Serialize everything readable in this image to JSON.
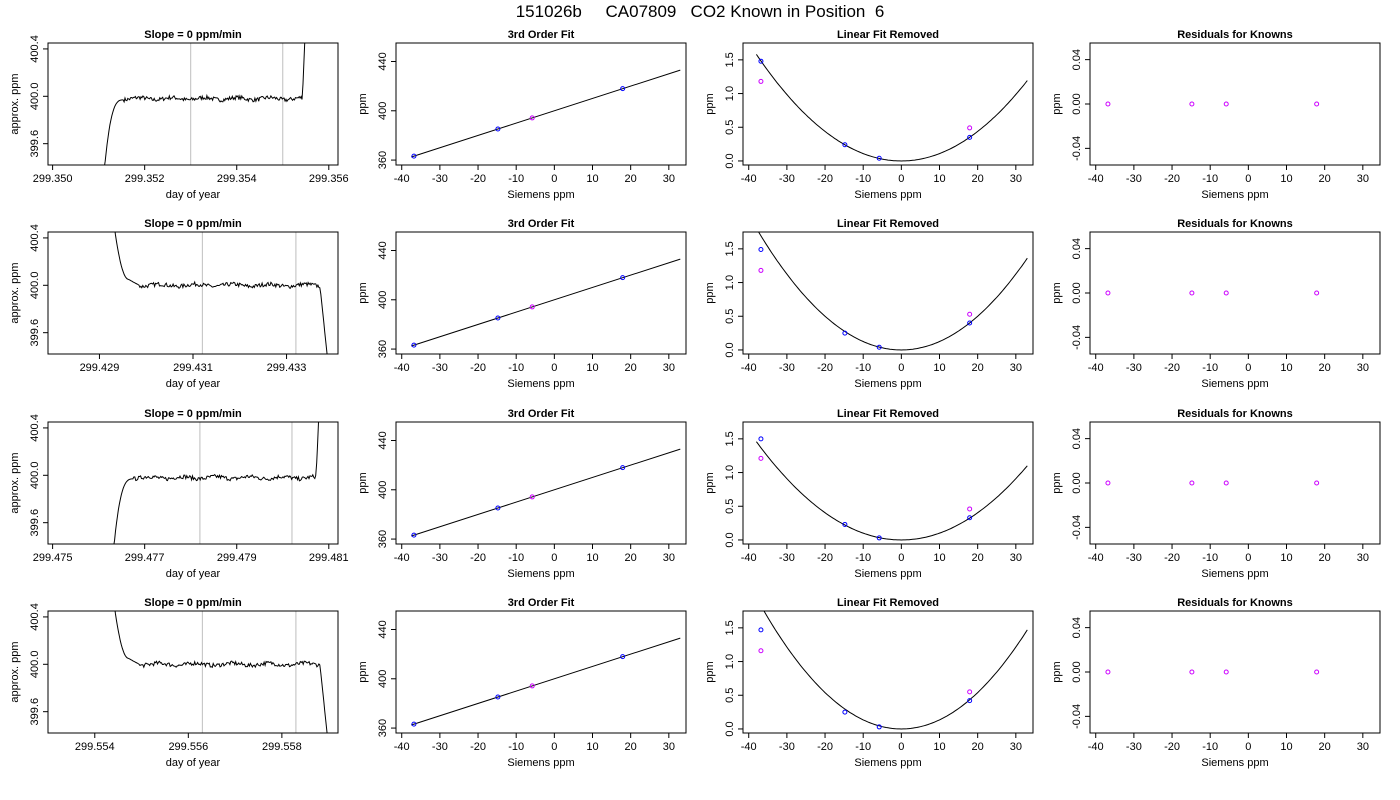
{
  "page": {
    "title": "151026b     CA07809   CO2 Known in Position  6"
  },
  "chart_data": [
    {
      "type": "line",
      "row": 1,
      "col": 1,
      "title": "Slope =  0  ppm/min",
      "xlabel": "day of year",
      "ylabel": "approx. ppm",
      "xlim": [
        299.3499,
        299.3562
      ],
      "ylim": [
        399.42,
        400.45
      ],
      "xticks": [
        {
          "v": 299.35,
          "label": "299.350"
        },
        {
          "v": 299.352,
          "label": "299.352"
        },
        {
          "v": 299.354,
          "label": "299.354"
        },
        {
          "v": 299.356,
          "label": "299.356"
        }
      ],
      "yticks": [
        {
          "v": 399.6,
          "label": "399.6"
        },
        {
          "v": 400.0,
          "label": "400.0"
        },
        {
          "v": 400.4,
          "label": "400.4"
        }
      ],
      "vlines": [
        299.353,
        299.355
      ],
      "trace": "rise",
      "trace_start": 299.351,
      "trace_end": 299.3555
    },
    {
      "type": "scatter",
      "row": 1,
      "col": 2,
      "title": "3rd Order Fit",
      "xlabel": "Siemens ppm",
      "ylabel": "ppm",
      "xlim": [
        -41.5,
        34.5
      ],
      "ylim": [
        356,
        455
      ],
      "xticks": [
        -40,
        -30,
        -20,
        -10,
        0,
        10,
        20,
        30
      ],
      "yticks": [
        360,
        400,
        440
      ],
      "points": [
        {
          "x": -36.8,
          "y": 363.2
        },
        {
          "x": -14.8,
          "y": 385.2
        },
        {
          "x": 17.9,
          "y": 418.0
        }
      ],
      "points_known": [
        {
          "x": -5.8,
          "y": 394.2
        }
      ],
      "fit_line": [
        [
          -37.5,
          362.5
        ],
        [
          33.0,
          433.0
        ]
      ]
    },
    {
      "type": "scatter",
      "row": 1,
      "col": 3,
      "title": "Linear Fit Removed",
      "xlabel": "Siemens ppm",
      "ylabel": "ppm",
      "xlim": [
        -41.5,
        34.5
      ],
      "ylim": [
        -0.06,
        1.75
      ],
      "xticks": [
        -40,
        -30,
        -20,
        -10,
        0,
        10,
        20,
        30
      ],
      "yticks": [
        {
          "v": 0,
          "label": "0.0"
        },
        {
          "v": 0.5,
          "label": "0.5"
        },
        {
          "v": 1.0,
          "label": "1.0"
        },
        {
          "v": 1.5,
          "label": "1.5"
        }
      ],
      "points": [
        {
          "x": -36.8,
          "y": 1.48
        },
        {
          "x": -14.8,
          "y": 0.24
        },
        {
          "x": -5.8,
          "y": 0.04
        },
        {
          "x": 17.9,
          "y": 0.35
        }
      ],
      "points_known": [
        {
          "x": -36.8,
          "y": 1.18
        },
        {
          "x": 17.9,
          "y": 0.49
        }
      ],
      "curve_coef": 0.001095
    },
    {
      "type": "scatter",
      "row": 1,
      "col": 4,
      "title": "Residuals for Knowns",
      "xlabel": "Siemens ppm",
      "ylabel": "ppm",
      "xlim": [
        -41.5,
        34.5
      ],
      "ylim": [
        -0.055,
        0.055
      ],
      "xticks": [
        -40,
        -30,
        -20,
        -10,
        0,
        10,
        20,
        30
      ],
      "yticks": [
        {
          "v": -0.04,
          "label": "-0.04"
        },
        {
          "v": 0,
          "label": "0.00"
        },
        {
          "v": 0.04,
          "label": "0.04"
        }
      ],
      "points_known": [
        {
          "x": -36.8,
          "y": 0
        },
        {
          "x": -14.8,
          "y": 0
        },
        {
          "x": -5.8,
          "y": 0
        },
        {
          "x": 17.9,
          "y": 0
        }
      ]
    },
    {
      "type": "line",
      "row": 2,
      "col": 1,
      "title": "Slope =  0  ppm/min",
      "xlabel": "day of year",
      "ylabel": "approx. ppm",
      "xlim": [
        299.4279,
        299.4341
      ],
      "ylim": [
        399.42,
        400.45
      ],
      "xticks": [
        {
          "v": 299.429,
          "label": "299.429"
        },
        {
          "v": 299.431,
          "label": "299.431"
        },
        {
          "v": 299.433,
          "label": "299.433"
        }
      ],
      "yticks": [
        {
          "v": 399.6,
          "label": "399.6"
        },
        {
          "v": 400.0,
          "label": "400.0"
        },
        {
          "v": 400.4,
          "label": "400.4"
        }
      ],
      "vlines": [
        299.4312,
        299.4332
      ],
      "trace": "fall",
      "trace_start": 299.4293,
      "trace_end": 299.4339
    },
    {
      "type": "scatter",
      "row": 2,
      "col": 2,
      "title": "3rd Order Fit",
      "xlabel": "Siemens ppm",
      "ylabel": "ppm",
      "xlim": [
        -41.5,
        34.5
      ],
      "ylim": [
        356,
        455
      ],
      "xticks": [
        -40,
        -30,
        -20,
        -10,
        0,
        10,
        20,
        30
      ],
      "yticks": [
        360,
        400,
        440
      ],
      "points": [
        {
          "x": -36.8,
          "y": 363.2
        },
        {
          "x": -14.8,
          "y": 385.2
        },
        {
          "x": 17.9,
          "y": 418.0
        }
      ],
      "points_known": [
        {
          "x": -5.8,
          "y": 394.2
        }
      ],
      "fit_line": [
        [
          -37.5,
          362.5
        ],
        [
          33.0,
          433.0
        ]
      ]
    },
    {
      "type": "scatter",
      "row": 2,
      "col": 3,
      "title": "Linear Fit Removed",
      "xlabel": "Siemens ppm",
      "ylabel": "ppm",
      "xlim": [
        -41.5,
        34.5
      ],
      "ylim": [
        -0.06,
        1.75
      ],
      "xticks": [
        -40,
        -30,
        -20,
        -10,
        0,
        10,
        20,
        30
      ],
      "yticks": [
        {
          "v": 0,
          "label": "0.0"
        },
        {
          "v": 0.5,
          "label": "0.5"
        },
        {
          "v": 1.0,
          "label": "1.0"
        },
        {
          "v": 1.5,
          "label": "1.5"
        }
      ],
      "points": [
        {
          "x": -36.8,
          "y": 1.49
        },
        {
          "x": -14.8,
          "y": 0.25
        },
        {
          "x": -5.8,
          "y": 0.04
        },
        {
          "x": 17.9,
          "y": 0.4
        }
      ],
      "points_known": [
        {
          "x": -36.8,
          "y": 1.18
        },
        {
          "x": 17.9,
          "y": 0.53
        }
      ],
      "curve_coef": 0.00125
    },
    {
      "type": "scatter",
      "row": 2,
      "col": 4,
      "title": "Residuals for Knowns",
      "xlabel": "Siemens ppm",
      "ylabel": "ppm",
      "xlim": [
        -41.5,
        34.5
      ],
      "ylim": [
        -0.055,
        0.055
      ],
      "xticks": [
        -40,
        -30,
        -20,
        -10,
        0,
        10,
        20,
        30
      ],
      "yticks": [
        {
          "v": -0.04,
          "label": "-0.04"
        },
        {
          "v": 0,
          "label": "0.00"
        },
        {
          "v": 0.04,
          "label": "0.04"
        }
      ],
      "points_known": [
        {
          "x": -36.8,
          "y": 0
        },
        {
          "x": -14.8,
          "y": 0
        },
        {
          "x": -5.8,
          "y": 0
        },
        {
          "x": 17.9,
          "y": 0
        }
      ]
    },
    {
      "type": "line",
      "row": 3,
      "col": 1,
      "title": "Slope =  0  ppm/min",
      "xlabel": "day of year",
      "ylabel": "approx. ppm",
      "xlim": [
        299.4749,
        299.4812
      ],
      "ylim": [
        399.42,
        400.45
      ],
      "xticks": [
        {
          "v": 299.475,
          "label": "299.475"
        },
        {
          "v": 299.477,
          "label": "299.477"
        },
        {
          "v": 299.479,
          "label": "299.479"
        },
        {
          "v": 299.481,
          "label": "299.481"
        }
      ],
      "yticks": [
        {
          "v": 399.6,
          "label": "399.6"
        },
        {
          "v": 400.0,
          "label": "400.0"
        },
        {
          "v": 400.4,
          "label": "400.4"
        }
      ],
      "vlines": [
        299.4782,
        299.4802
      ],
      "trace": "rise",
      "trace_start": 299.4762,
      "trace_end": 299.4808
    },
    {
      "type": "scatter",
      "row": 3,
      "col": 2,
      "title": "3rd Order Fit",
      "xlabel": "Siemens ppm",
      "ylabel": "ppm",
      "xlim": [
        -41.5,
        34.5
      ],
      "ylim": [
        356,
        455
      ],
      "xticks": [
        -40,
        -30,
        -20,
        -10,
        0,
        10,
        20,
        30
      ],
      "yticks": [
        360,
        400,
        440
      ],
      "points": [
        {
          "x": -36.8,
          "y": 363.2
        },
        {
          "x": -14.8,
          "y": 385.2
        },
        {
          "x": 17.9,
          "y": 418.0
        }
      ],
      "points_known": [
        {
          "x": -5.8,
          "y": 394.2
        }
      ],
      "fit_line": [
        [
          -37.5,
          362.5
        ],
        [
          33.0,
          433.0
        ]
      ]
    },
    {
      "type": "scatter",
      "row": 3,
      "col": 3,
      "title": "Linear Fit Removed",
      "xlabel": "Siemens ppm",
      "ylabel": "ppm",
      "xlim": [
        -41.5,
        34.5
      ],
      "ylim": [
        -0.06,
        1.75
      ],
      "xticks": [
        -40,
        -30,
        -20,
        -10,
        0,
        10,
        20,
        30
      ],
      "yticks": [
        {
          "v": 0,
          "label": "0.0"
        },
        {
          "v": 0.5,
          "label": "0.5"
        },
        {
          "v": 1.0,
          "label": "1.0"
        },
        {
          "v": 1.5,
          "label": "1.5"
        }
      ],
      "points": [
        {
          "x": -36.8,
          "y": 1.5
        },
        {
          "x": -14.8,
          "y": 0.23
        },
        {
          "x": -5.8,
          "y": 0.03
        },
        {
          "x": 17.9,
          "y": 0.33
        }
      ],
      "points_known": [
        {
          "x": -36.8,
          "y": 1.21
        },
        {
          "x": 17.9,
          "y": 0.46
        }
      ],
      "curve_coef": 0.00101
    },
    {
      "type": "scatter",
      "row": 3,
      "col": 4,
      "title": "Residuals for Knowns",
      "xlabel": "Siemens ppm",
      "ylabel": "ppm",
      "xlim": [
        -41.5,
        34.5
      ],
      "ylim": [
        -0.055,
        0.055
      ],
      "xticks": [
        -40,
        -30,
        -20,
        -10,
        0,
        10,
        20,
        30
      ],
      "yticks": [
        {
          "v": -0.04,
          "label": "-0.04"
        },
        {
          "v": 0,
          "label": "0.00"
        },
        {
          "v": 0.04,
          "label": "0.04"
        }
      ],
      "points_known": [
        {
          "x": -36.8,
          "y": 0
        },
        {
          "x": -14.8,
          "y": 0
        },
        {
          "x": -5.8,
          "y": 0
        },
        {
          "x": 17.9,
          "y": 0
        }
      ]
    },
    {
      "type": "line",
      "row": 4,
      "col": 1,
      "title": "Slope =  0  ppm/min",
      "xlabel": "day of year",
      "ylabel": "approx. ppm",
      "xlim": [
        299.553,
        299.5592
      ],
      "ylim": [
        399.42,
        400.45
      ],
      "xticks": [
        {
          "v": 299.554,
          "label": "299.554"
        },
        {
          "v": 299.556,
          "label": "299.556"
        },
        {
          "v": 299.558,
          "label": "299.558"
        }
      ],
      "yticks": [
        {
          "v": 399.6,
          "label": "399.6"
        },
        {
          "v": 400.0,
          "label": "400.0"
        },
        {
          "v": 400.4,
          "label": "400.4"
        }
      ],
      "vlines": [
        299.5563,
        299.5583
      ],
      "trace": "fall",
      "trace_start": 299.5544,
      "trace_end": 299.559
    },
    {
      "type": "scatter",
      "row": 4,
      "col": 2,
      "title": "3rd Order Fit",
      "xlabel": "Siemens ppm",
      "ylabel": "ppm",
      "xlim": [
        -41.5,
        34.5
      ],
      "ylim": [
        356,
        455
      ],
      "xticks": [
        -40,
        -30,
        -20,
        -10,
        0,
        10,
        20,
        30
      ],
      "yticks": [
        360,
        400,
        440
      ],
      "points": [
        {
          "x": -36.8,
          "y": 363.2
        },
        {
          "x": -14.8,
          "y": 385.2
        },
        {
          "x": 17.9,
          "y": 418.0
        }
      ],
      "points_known": [
        {
          "x": -5.8,
          "y": 394.2
        }
      ],
      "fit_line": [
        [
          -37.5,
          362.5
        ],
        [
          33.0,
          433.0
        ]
      ]
    },
    {
      "type": "scatter",
      "row": 4,
      "col": 3,
      "title": "Linear Fit Removed",
      "xlabel": "Siemens ppm",
      "ylabel": "ppm",
      "xlim": [
        -41.5,
        34.5
      ],
      "ylim": [
        -0.06,
        1.75
      ],
      "xticks": [
        -40,
        -30,
        -20,
        -10,
        0,
        10,
        20,
        30
      ],
      "yticks": [
        {
          "v": 0,
          "label": "0.0"
        },
        {
          "v": 0.5,
          "label": "0.5"
        },
        {
          "v": 1.0,
          "label": "1.0"
        },
        {
          "v": 1.5,
          "label": "1.5"
        }
      ],
      "points": [
        {
          "x": -36.8,
          "y": 1.47
        },
        {
          "x": -14.8,
          "y": 0.25
        },
        {
          "x": -5.8,
          "y": 0.03
        },
        {
          "x": 17.9,
          "y": 0.42
        }
      ],
      "points_known": [
        {
          "x": -36.8,
          "y": 1.16
        },
        {
          "x": 17.9,
          "y": 0.55
        }
      ],
      "curve_coef": 0.00135
    },
    {
      "type": "scatter",
      "row": 4,
      "col": 4,
      "title": "Residuals for Knowns",
      "xlabel": "Siemens ppm",
      "ylabel": "ppm",
      "xlim": [
        -41.5,
        34.5
      ],
      "ylim": [
        -0.055,
        0.055
      ],
      "xticks": [
        -40,
        -30,
        -20,
        -10,
        0,
        10,
        20,
        30
      ],
      "yticks": [
        {
          "v": -0.04,
          "label": "-0.04"
        },
        {
          "v": 0,
          "label": "0.00"
        },
        {
          "v": 0.04,
          "label": "0.04"
        }
      ],
      "points_known": [
        {
          "x": -36.8,
          "y": 0
        },
        {
          "x": -14.8,
          "y": 0
        },
        {
          "x": -5.8,
          "y": 0
        },
        {
          "x": 17.9,
          "y": 0
        }
      ]
    }
  ],
  "colors": {
    "axis": "#000000",
    "trace": "#000000",
    "fit": "#000000",
    "vline": "#bebebe",
    "point_fit": "#0000ff",
    "point_fit_inner": "#1e90ff",
    "point_known": "#cc00ff"
  }
}
